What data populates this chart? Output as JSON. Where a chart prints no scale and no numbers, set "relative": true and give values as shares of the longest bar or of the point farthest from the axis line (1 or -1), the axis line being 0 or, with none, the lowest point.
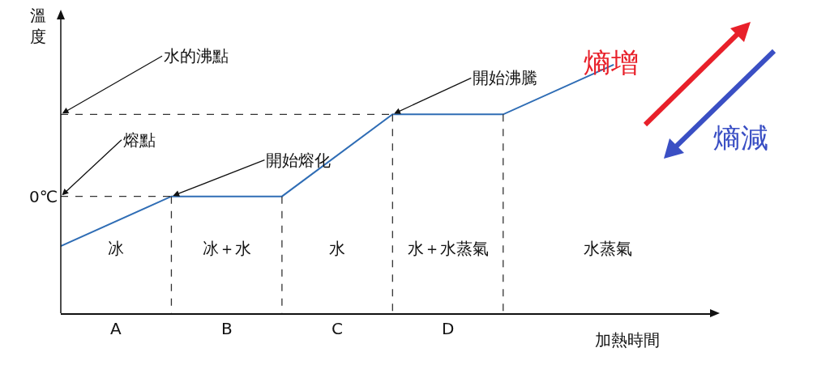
{
  "chart_data": {
    "type": "line",
    "relative": true,
    "xlabel": "加熱時間",
    "ylabel": "溫度",
    "categories": [
      null,
      null,
      null,
      null,
      null,
      null
    ],
    "series": [
      {
        "color": "#2f6db5",
        "values": [
          0.27,
          0.47,
          0.47,
          0.8,
          0.8,
          1
        ]
      }
    ],
    "grid": false,
    "marker": "none",
    "line_style": "solid",
    "annotations": [
      "水的沸點",
      "熔點",
      "開始熔化",
      "開始沸騰",
      "冰",
      "冰＋水",
      "水",
      "水＋水蒸氣",
      "水蒸氣",
      "A",
      "B",
      "C",
      "D",
      "0℃",
      "熵增",
      "熵減"
    ]
  }
}
